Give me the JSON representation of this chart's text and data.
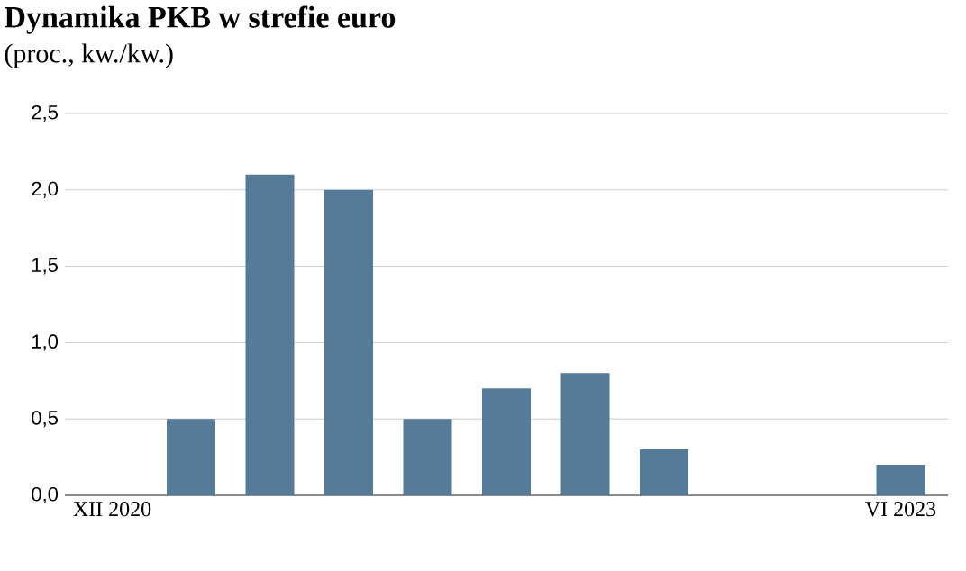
{
  "chart_data": {
    "type": "bar",
    "title": "Dynamika PKB w strefie euro",
    "subtitle": "(proc., kw./kw.)",
    "categories": [
      "XII 2020",
      null,
      null,
      null,
      null,
      null,
      null,
      null,
      null,
      null,
      "VI 2023"
    ],
    "values": [
      0.0,
      0.5,
      2.1,
      2.0,
      0.5,
      0.7,
      0.8,
      0.3,
      0.0,
      0.0,
      0.2
    ],
    "color": "#557b98",
    "ylim": [
      0,
      2.5
    ],
    "yticks": [
      {
        "value": 0,
        "label": "0,0"
      },
      {
        "value": 0.5,
        "label": "0,5"
      },
      {
        "value": 1.0,
        "label": "1,0"
      },
      {
        "value": 1.5,
        "label": "1,5"
      },
      {
        "value": 2.0,
        "label": "2,0"
      },
      {
        "value": 2.5,
        "label": "2,5"
      }
    ],
    "grid": "y"
  }
}
